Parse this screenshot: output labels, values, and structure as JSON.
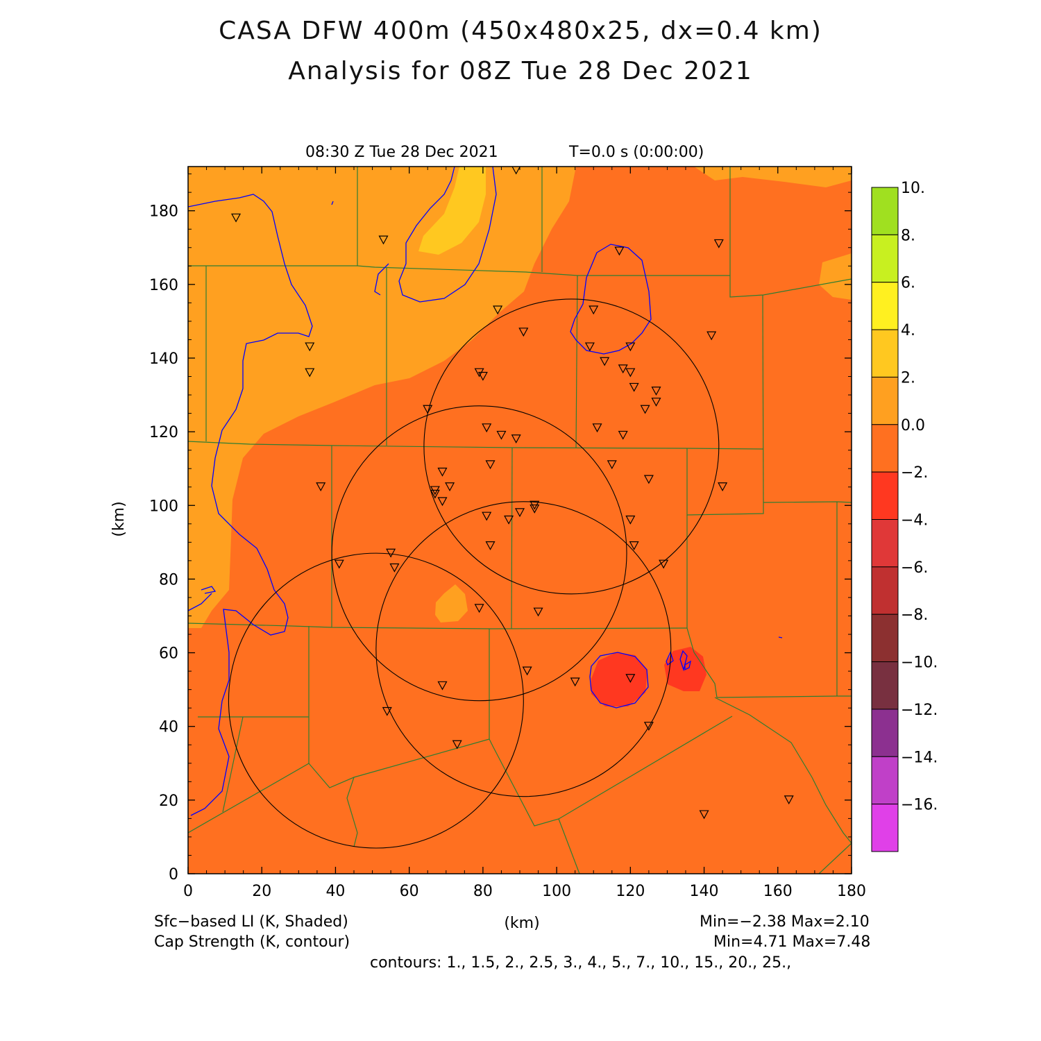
{
  "header": {
    "title_line1": "CASA DFW 400m (450x480x25, dx=0.4 km)",
    "title_line2": "Analysis for 08Z Tue 28 Dec 2021",
    "valid_time": "08:30 Z Tue 28 Dec 2021",
    "forecast_time": "T=0.0 s (0:00:00)"
  },
  "axes": {
    "x_label": "(km)",
    "y_label": "(km)",
    "x_ticks": [
      "0",
      "20",
      "40",
      "60",
      "80",
      "100",
      "120",
      "140",
      "160",
      "180"
    ],
    "y_ticks": [
      "0",
      "20",
      "40",
      "60",
      "80",
      "100",
      "120",
      "140",
      "160",
      "180"
    ],
    "x_range": [
      0,
      180
    ],
    "y_range": [
      0,
      192
    ]
  },
  "colorbar": {
    "labels": [
      "10.",
      "8.",
      "6.",
      "4.",
      "2.",
      "0.0",
      "−2.",
      "−4.",
      "−6.",
      "−8.",
      "−10.",
      "−12.",
      "−14.",
      "−16."
    ],
    "colors": [
      "#a0e020",
      "#c8f020",
      "#fff020",
      "#ffc820",
      "#ffa020",
      "#ff7020",
      "#ff3820",
      "#e03838",
      "#c03030",
      "#8c3030",
      "#783040",
      "#8c3090",
      "#c040c8",
      "#e040e8"
    ]
  },
  "footer": {
    "field1": "Sfc−based LI (K, Shaded)",
    "field1_stats": "Min=−2.38 Max=2.10",
    "field2": "Cap Strength (K, contour)",
    "field2_stats": "Min=4.71 Max=7.48",
    "contours": "contours: 1., 1.5, 2., 2.5, 3., 4., 5., 7., 10., 15., 20., 25.,"
  },
  "colors": {
    "li_0_to_2": "#ffa020",
    "li_m2_to_0": "#ff7020",
    "li_2_to_4": "#ffc820",
    "li_m4_to_m2": "#ff3820",
    "county_lines": "#2e7d32",
    "cap_contour": "#0000ff",
    "radar_rings": "#000000"
  },
  "map_data": {
    "stations": [
      [
        13,
        178
      ],
      [
        53,
        172
      ],
      [
        89,
        191
      ],
      [
        117,
        169
      ],
      [
        144,
        171
      ],
      [
        84,
        153
      ],
      [
        91,
        147
      ],
      [
        110,
        153
      ],
      [
        109,
        143
      ],
      [
        120,
        143
      ],
      [
        33,
        143
      ],
      [
        33,
        136
      ],
      [
        79,
        136
      ],
      [
        80,
        135
      ],
      [
        113,
        139
      ],
      [
        118,
        137
      ],
      [
        120,
        136
      ],
      [
        121,
        132
      ],
      [
        127,
        131
      ],
      [
        127,
        128
      ],
      [
        124,
        126
      ],
      [
        65,
        126
      ],
      [
        81,
        121
      ],
      [
        85,
        119
      ],
      [
        89,
        118
      ],
      [
        111,
        121
      ],
      [
        118,
        119
      ],
      [
        142,
        146
      ],
      [
        69,
        109
      ],
      [
        67,
        104
      ],
      [
        67,
        103
      ],
      [
        69,
        101
      ],
      [
        71,
        105
      ],
      [
        82,
        111
      ],
      [
        115,
        111
      ],
      [
        125,
        107
      ],
      [
        36,
        105
      ],
      [
        145,
        105
      ],
      [
        81,
        97
      ],
      [
        87,
        96
      ],
      [
        90,
        98
      ],
      [
        94,
        100
      ],
      [
        94,
        99
      ],
      [
        120,
        96
      ],
      [
        121,
        89
      ],
      [
        82,
        89
      ],
      [
        129,
        84
      ],
      [
        41,
        84
      ],
      [
        55,
        87
      ],
      [
        56,
        83
      ],
      [
        79,
        72
      ],
      [
        95,
        71
      ],
      [
        69,
        51
      ],
      [
        92,
        55
      ],
      [
        105,
        52
      ],
      [
        120,
        53
      ],
      [
        54,
        44
      ],
      [
        73,
        35
      ],
      [
        125,
        40
      ],
      [
        140,
        16
      ],
      [
        163,
        20
      ]
    ],
    "radars": [
      {
        "center": [
          104,
          116
        ],
        "radius": 40
      },
      {
        "center": [
          79,
          87
        ],
        "radius": 40
      },
      {
        "center": [
          91,
          61
        ],
        "radius": 40
      },
      {
        "center": [
          51,
          47
        ],
        "radius": 40
      }
    ]
  }
}
